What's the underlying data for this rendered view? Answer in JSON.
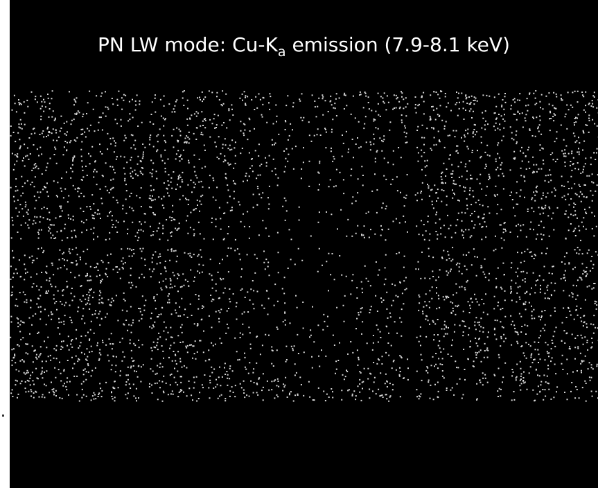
{
  "title": {
    "prefix": "PN LW mode: Cu-K",
    "subscript": "a",
    "suffix": " emission (7.9-8.1 keV)"
  }
}
